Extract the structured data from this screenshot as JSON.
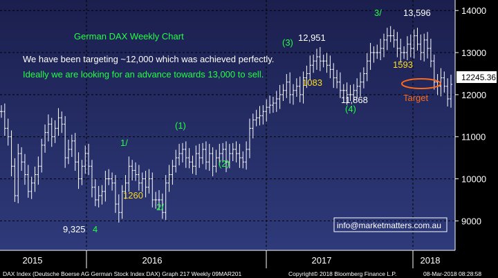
{
  "chart_data": {
    "type": "ohlc",
    "title": "German DAX Weekly Chart",
    "xlabel": "",
    "ylabel": "",
    "ylim": [
      8300,
      14250
    ],
    "y_ticks": [
      {
        "value": 14000,
        "label": "14000"
      },
      {
        "value": 13000,
        "label": "13000"
      },
      {
        "value": 12000,
        "label": "12000"
      },
      {
        "value": 11000,
        "label": "11000"
      },
      {
        "value": 10000,
        "label": "10000"
      },
      {
        "value": 9000,
        "label": "9000"
      }
    ],
    "x_ticks": [
      "2015",
      "2016",
      "2017",
      "2018"
    ],
    "last_price_label": "12245.36",
    "commentary": [
      "We have been targeting ~12,000 which was achieved perfectly.",
      "Ideally we are looking for an advance towards 13,000 to sell."
    ],
    "wave_labels": [
      "1/",
      "2/",
      "3/",
      "(1)",
      "(2)",
      "(3)",
      "(4)",
      "4"
    ],
    "price_labels": [
      "9,325",
      "1260",
      "12,951",
      "1083",
      "11,868",
      "1593",
      "13,596"
    ],
    "target_label": "Target",
    "contact": "info@marketmatters.com.au",
    "footer_left": "DAX Index (Deutsche Boerse AG German Stock Index DAX) Graph 217  Weekly 09MAR201",
    "footer_center": "Copyright© 2018 Bloomberg Finance L.P.",
    "footer_right": "08-Mar-2018 08:28:58",
    "series": [
      {
        "values": [
          11600,
          11200,
          11000,
          10300,
          9600,
          10600,
          10400,
          10100,
          9700,
          9900,
          10100,
          10300,
          10800,
          11100,
          11300,
          11000,
          11200,
          11450,
          11300,
          10500,
          10700,
          10900,
          10400,
          10000,
          10300,
          10600,
          10300,
          9800,
          9500,
          9600,
          9700,
          10000,
          10000,
          9900,
          9400,
          9200,
          9700,
          9900,
          10300,
          10200,
          10100,
          9900,
          10000,
          9800,
          10000,
          9500,
          9500,
          9500,
          9200,
          9900,
          10100,
          10300,
          10500,
          10600,
          10700,
          10500,
          10400,
          10300,
          10600,
          10500,
          10700,
          10400,
          10600,
          10300,
          10500,
          10600,
          10700,
          10400,
          10600,
          10700,
          10600,
          10500,
          10400,
          10700,
          11200,
          11400,
          11450,
          11500,
          11600,
          11700,
          11750,
          11800,
          11900,
          12000,
          12100,
          12300,
          12000,
          12100,
          12200,
          12000,
          12400,
          12500,
          12700,
          12800,
          12900,
          12800,
          12800,
          12700,
          12600,
          12400,
          12300,
          12100,
          12100,
          12000,
          12000,
          12100,
          12200,
          12300,
          12500,
          12800,
          13000,
          13000,
          13000,
          13100,
          13300,
          13400,
          13400,
          13300,
          13100,
          13000,
          13000,
          13200,
          13100,
          13400,
          13200,
          13000,
          13300,
          13100,
          12800,
          12300,
          12200,
          12400,
          12200,
          11900,
          12245.36
        ]
      }
    ]
  }
}
